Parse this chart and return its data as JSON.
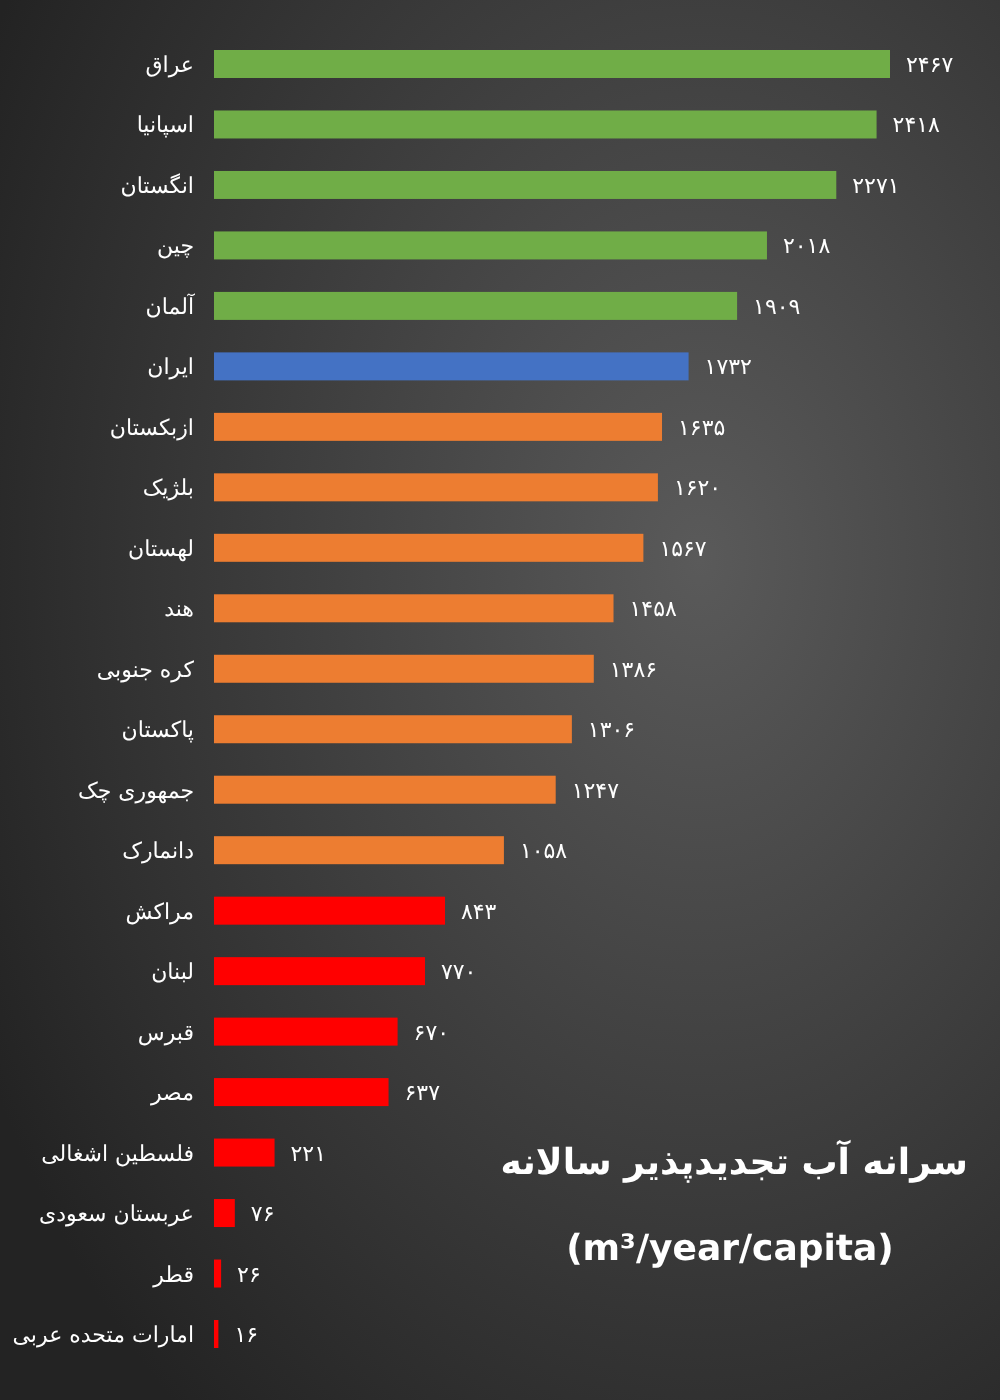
{
  "chart_data": {
    "type": "bar",
    "orientation": "horizontal",
    "title": "سرانه آب تجدیدپذیر سالانه",
    "subtitle": "(m³/year/capita)",
    "categories": [
      "عراق",
      "اسپانیا",
      "انگستان",
      "چین",
      "آلمان",
      "ایران",
      "ازبکستان",
      "بلژیک",
      "لهستان",
      "هند",
      "کره جنوبی",
      "پاکستان",
      "جمهوری چک",
      "دانمارک",
      "مراکش",
      "لبنان",
      "قبرس",
      "مصر",
      "فلسطین اشغالی",
      "عربستان سعودی",
      "قطر",
      "امارات متحده عربی"
    ],
    "values": [
      2467,
      2418,
      2271,
      2018,
      1909,
      1732,
      1635,
      1620,
      1567,
      1458,
      1386,
      1306,
      1247,
      1058,
      843,
      770,
      670,
      637,
      221,
      76,
      26,
      16
    ],
    "colors": [
      "#70ad47",
      "#70ad47",
      "#70ad47",
      "#70ad47",
      "#70ad47",
      "#4472c4",
      "#ed7d31",
      "#ed7d31",
      "#ed7d31",
      "#ed7d31",
      "#ed7d31",
      "#ed7d31",
      "#ed7d31",
      "#ed7d31",
      "#ff0000",
      "#ff0000",
      "#ff0000",
      "#ff0000",
      "#ff0000",
      "#ff0000",
      "#ff0000",
      "#ff0000"
    ],
    "value_labels": [
      "۲۴۶۷",
      "۲۴۱۸",
      "۲۲۷۱",
      "۲۰۱۸",
      "۱۹۰۹",
      "۱۷۳۲",
      "۱۶۳۵",
      "۱۶۲۰",
      "۱۵۶۷",
      "۱۴۵۸",
      "۱۳۸۶",
      "۱۳۰۶",
      "۱۲۴۷",
      "۱۰۵۸",
      "۸۴۳",
      "۷۷۰",
      "۶۷۰",
      "۶۳۷",
      "۲۲۱",
      "۷۶",
      "۲۶",
      "۱۶"
    ],
    "tick_labels": "y"
  }
}
